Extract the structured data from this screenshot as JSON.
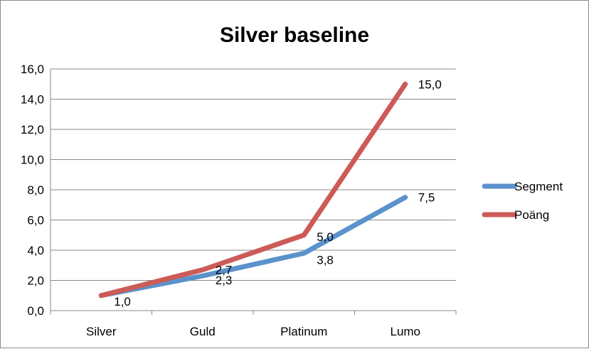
{
  "chart_data": {
    "type": "line",
    "title": "Silver baseline",
    "xlabel": "",
    "ylabel": "",
    "categories": [
      "Silver",
      "Guld",
      "Platinum",
      "Lumo"
    ],
    "ylim": [
      0,
      16
    ],
    "yticks": [
      "0,0",
      "2,0",
      "4,0",
      "6,0",
      "8,0",
      "10,0",
      "12,0",
      "14,0",
      "16,0"
    ],
    "grid": true,
    "legend_position": "right",
    "series": [
      {
        "name": "Segment",
        "color": "#5B92CC",
        "values": [
          1.0,
          2.3,
          3.8,
          7.5
        ],
        "labels": [
          "",
          "2,3",
          "3,8",
          "7,5"
        ]
      },
      {
        "name": "Poäng",
        "color": "#CC5B57",
        "values": [
          1.0,
          2.7,
          5.0,
          15.0
        ],
        "labels": [
          "1,0",
          "2,7",
          "5,0",
          "15,0"
        ]
      }
    ]
  }
}
